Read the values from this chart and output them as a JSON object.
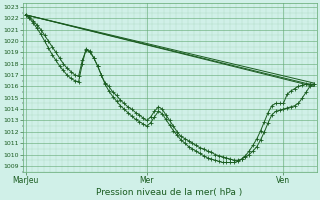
{
  "title": "Pression niveau de la mer( hPa )",
  "bg_color": "#d0f0e8",
  "grid_major_color": "#60a870",
  "grid_minor_color": "#90c8a0",
  "line_color": "#1a5c20",
  "ylim": [
    1009,
    1023
  ],
  "yticks": [
    1009,
    1010,
    1011,
    1012,
    1013,
    1014,
    1015,
    1016,
    1017,
    1018,
    1019,
    1020,
    1021,
    1022,
    1023
  ],
  "xtick_labels": [
    "MarJeu",
    "Mer",
    "Ven"
  ],
  "xtick_positions": [
    0.0,
    0.42,
    0.895
  ],
  "series_plain": [
    {
      "x": [
        0.0,
        1.0
      ],
      "y": [
        1022.3,
        1016.0
      ]
    },
    {
      "x": [
        0.0,
        1.0
      ],
      "y": [
        1022.3,
        1016.1
      ]
    },
    {
      "x": [
        0.0,
        1.0
      ],
      "y": [
        1022.3,
        1016.3
      ]
    }
  ],
  "series_marked": [
    [
      0.0,
      0.013,
      0.026,
      0.04,
      0.053,
      0.066,
      0.079,
      0.092,
      0.105,
      0.118,
      0.131,
      0.144,
      0.158,
      0.171,
      0.184,
      0.197,
      0.21,
      0.224,
      0.237,
      0.25,
      0.263,
      0.276,
      0.289,
      0.303,
      0.316,
      0.329,
      0.342,
      0.355,
      0.368,
      0.382,
      0.395,
      0.408,
      0.421,
      0.434,
      0.447,
      0.461,
      0.474,
      0.487,
      0.5,
      0.513,
      0.526,
      0.539,
      0.553,
      0.566,
      0.579,
      0.592,
      0.605,
      0.618,
      0.632,
      0.645,
      0.658,
      0.671,
      0.684,
      0.697,
      0.711,
      0.724,
      0.737,
      0.75,
      0.763,
      0.776,
      0.789,
      0.803,
      0.816,
      0.829,
      0.842,
      0.855,
      0.868,
      0.882,
      0.895,
      0.908,
      0.921,
      0.934,
      0.947,
      0.961,
      0.974,
      0.987,
      1.0
    ],
    [
      1022.3,
      1022.1,
      1021.8,
      1021.4,
      1021.0,
      1020.5,
      1020.0,
      1019.5,
      1019.0,
      1018.5,
      1018.0,
      1017.6,
      1017.3,
      1017.0,
      1016.9,
      1018.3,
      1019.2,
      1019.0,
      1018.5,
      1017.8,
      1017.0,
      1016.3,
      1016.0,
      1015.5,
      1015.2,
      1014.8,
      1014.5,
      1014.2,
      1014.0,
      1013.7,
      1013.5,
      1013.2,
      1013.0,
      1013.3,
      1013.8,
      1014.2,
      1014.0,
      1013.5,
      1013.0,
      1012.5,
      1012.0,
      1011.6,
      1011.4,
      1011.2,
      1011.0,
      1010.8,
      1010.6,
      1010.5,
      1010.3,
      1010.2,
      1010.0,
      1009.9,
      1009.8,
      1009.7,
      1009.6,
      1009.5,
      1009.5,
      1009.6,
      1009.8,
      1010.0,
      1010.3,
      1010.7,
      1011.3,
      1012.0,
      1012.8,
      1013.5,
      1013.8,
      1013.9,
      1014.0,
      1014.1,
      1014.2,
      1014.3,
      1014.5,
      1015.0,
      1015.5,
      1016.0,
      1016.2
    ],
    [
      1022.3,
      1022.0,
      1021.6,
      1021.1,
      1020.6,
      1020.0,
      1019.4,
      1018.8,
      1018.3,
      1017.8,
      1017.4,
      1017.0,
      1016.7,
      1016.5,
      1016.4,
      1018.0,
      1019.3,
      1019.1,
      1018.5,
      1017.8,
      1017.0,
      1016.2,
      1015.6,
      1015.1,
      1014.7,
      1014.3,
      1014.0,
      1013.7,
      1013.4,
      1013.1,
      1012.9,
      1012.7,
      1012.5,
      1012.8,
      1013.3,
      1013.8,
      1013.6,
      1013.1,
      1012.6,
      1012.1,
      1011.7,
      1011.3,
      1011.0,
      1010.7,
      1010.5,
      1010.3,
      1010.1,
      1009.9,
      1009.7,
      1009.6,
      1009.5,
      1009.4,
      1009.3,
      1009.3,
      1009.3,
      1009.3,
      1009.4,
      1009.6,
      1009.9,
      1010.3,
      1010.8,
      1011.4,
      1012.1,
      1012.9,
      1013.7,
      1014.3,
      1014.5,
      1014.5,
      1014.5,
      1015.3,
      1015.6,
      1015.8,
      1016.0,
      1016.1,
      1016.2,
      1016.2,
      1016.2
    ]
  ]
}
